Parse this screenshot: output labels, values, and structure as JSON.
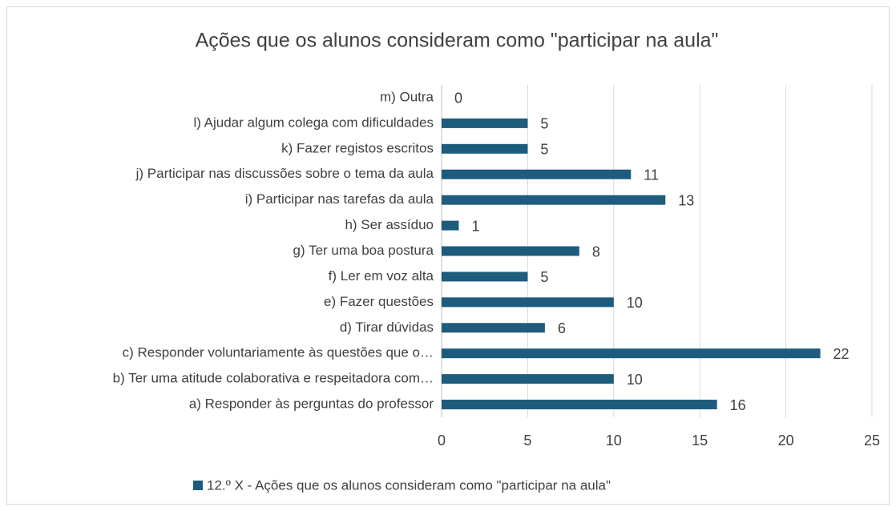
{
  "chart_data": {
    "type": "barh",
    "title": "Ações que os alunos consideram como \"participar na aula\"",
    "categories": [
      "a) Responder às perguntas do professor",
      "b) Ter uma atitude colaborativa e respeitadora com…",
      "c) Responder voluntariamente às questões que o…",
      "d) Tirar dúvidas",
      "e) Fazer questões",
      "f) Ler em voz alta",
      "g) Ter uma boa postura",
      "h) Ser assíduo",
      "i) Participar nas tarefas da aula",
      "j) Participar nas discussões sobre o tema da aula",
      "k) Fazer registos escritos",
      "l) Ajudar algum colega com dificuldades",
      "m) Outra"
    ],
    "series": [
      {
        "name": "12.º X - Ações que os alunos consideram como \"participar na aula\"",
        "color": "#1d5c7d",
        "values": [
          16,
          10,
          22,
          6,
          10,
          5,
          8,
          1,
          13,
          11,
          5,
          5,
          0
        ]
      }
    ],
    "xlim": [
      0,
      25
    ],
    "xticks": [
      0,
      5,
      10,
      15,
      20,
      25
    ],
    "grid": true,
    "legend": "bottom"
  }
}
